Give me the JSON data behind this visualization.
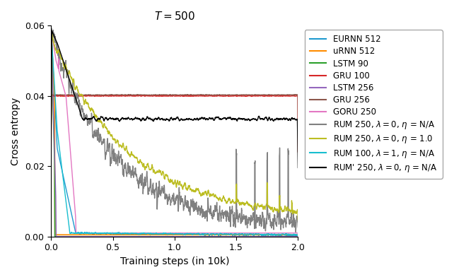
{
  "title": "$T = 500$",
  "xlabel": "Training steps (in 10k)",
  "ylabel": "Cross entropy",
  "xlim": [
    0,
    2.0
  ],
  "ylim": [
    0,
    0.06
  ],
  "yticks": [
    0.0,
    0.02,
    0.04,
    0.06
  ],
  "xticks": [
    0.0,
    0.5,
    1.0,
    1.5,
    2.0
  ],
  "series": [
    {
      "label": "EURNN 512",
      "color": "#1f9acf",
      "lw": 1.0
    },
    {
      "label": "uRNN 512",
      "color": "#ff8c00",
      "lw": 1.2
    },
    {
      "label": "LSTM 90",
      "color": "#2ca02c",
      "lw": 1.2
    },
    {
      "label": "GRU 100",
      "color": "#d62728",
      "lw": 1.0
    },
    {
      "label": "LSTM 256",
      "color": "#9467bd",
      "lw": 1.0
    },
    {
      "label": "GRU 256",
      "color": "#8c564b",
      "lw": 1.0
    },
    {
      "label": "GORU 250",
      "color": "#e377c2",
      "lw": 1.0
    },
    {
      "label": "RUM 250, $\\lambda = 0$, $\\eta$ = N/A",
      "color": "#808080",
      "lw": 1.0
    },
    {
      "label": "RUM 250, $\\lambda = 0$, $\\eta$ = 1.0",
      "color": "#bcbd22",
      "lw": 1.0
    },
    {
      "label": "RUM 100, $\\lambda = 1$, $\\eta$ = N/A",
      "color": "#17becf",
      "lw": 1.0
    },
    {
      "label": "RUM' 250, $\\lambda = 0$, $\\eta$ = N/A",
      "color": "#000000",
      "lw": 1.0
    }
  ],
  "background_color": "#ffffff",
  "legend_fontsize": 8.5
}
